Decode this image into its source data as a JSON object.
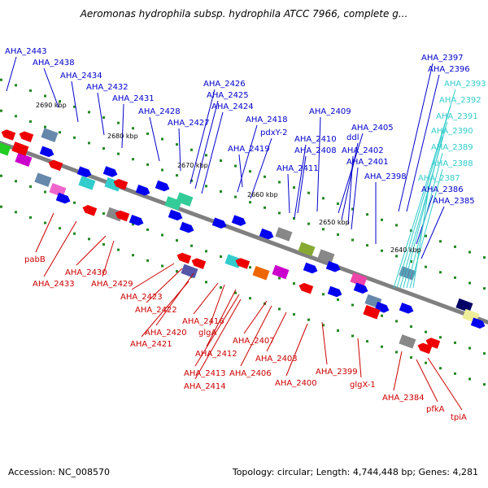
{
  "title": "Aeromonas hydrophila subsp. hydrophila ATCC 7966, complete g...",
  "footer": {
    "accession": "Accession: NC_008570",
    "summary": "Topology: circular; Length: 4,744,448 bp; Genes: 4,281"
  },
  "colors": {
    "backbone": "#808080",
    "forward_label": "#0000cc",
    "reverse_label": "#cc0000",
    "trna_label": "#33cccc",
    "forward_gene": "#0000ee",
    "reverse_gene": "#ee0000",
    "tick": "#228822"
  },
  "scale_labels": [
    "2690 kbp",
    "2680 kbp",
    "2670 kbp",
    "2660 kbp",
    "2650 kbp",
    "2640 kbp"
  ],
  "forward_labels": [
    "AHA_2443",
    "AHA_2438",
    "AHA_2434",
    "AHA_2432",
    "AHA_2431",
    "AHA_2428",
    "AHA_2427",
    "AHA_2426",
    "AHA_2425",
    "AHA_2424",
    "AHA_2418",
    "pdxY-2",
    "AHA_2419",
    "AHA_2409",
    "AHA_2410",
    "ddl",
    "AHA_2405",
    "AHA_2408",
    "AHA_2411",
    "AHA_2402",
    "AHA_2401",
    "AHA_2398",
    "AHA_2397",
    "AHA_2396",
    "AHA_2386",
    "AHA_2385"
  ],
  "trna_labels": [
    "AHA_2393",
    "AHA_2392",
    "AHA_2391",
    "AHA_2390",
    "AHA_2389",
    "AHA_2388",
    "AHA_2387"
  ],
  "reverse_labels": [
    "pabB",
    "AHA_2433",
    "AHA_2430",
    "AHA_2429",
    "AHA_2423",
    "AHA_2422",
    "AHA_2420",
    "AHA_2421",
    "AHA_2416",
    "glgA",
    "AHA_2412",
    "AHA_2413",
    "AHA_2414",
    "AHA_2407",
    "AHA_2406",
    "AHA_2403",
    "AHA_2400",
    "AHA_2399",
    "glgX-1",
    "AHA_2384",
    "pfkA",
    "tpiA"
  ]
}
